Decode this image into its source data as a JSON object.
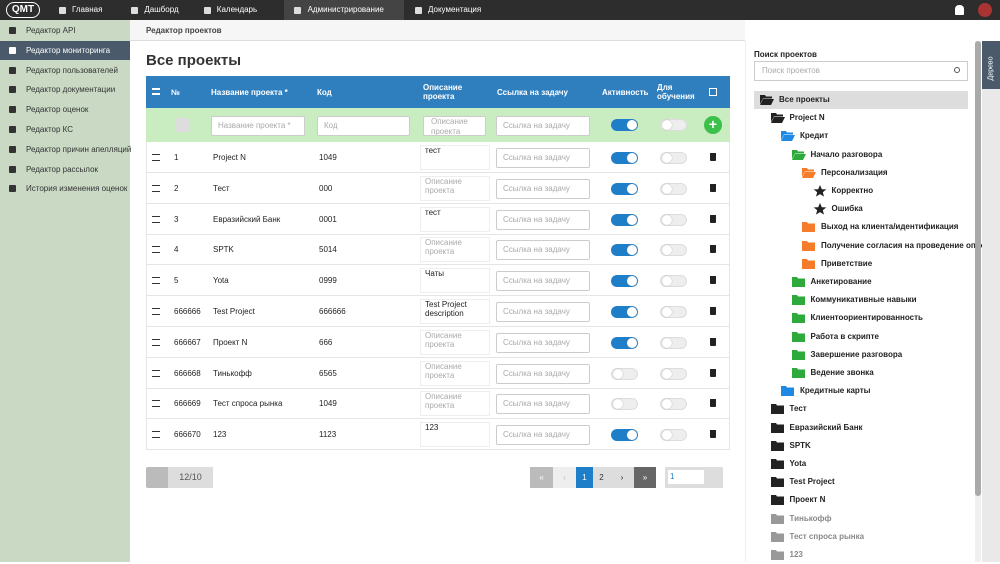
{
  "nav": {
    "logo": "QMT",
    "items": [
      "Главная",
      "Дашборд",
      "Календарь",
      "Администрирование",
      "Документация"
    ],
    "active": 3
  },
  "sidebar": {
    "items": [
      "Редактор API",
      "Редактор мониторинга",
      "Редактор пользователей",
      "Редактор документации",
      "Редактор оценок",
      "Редактор КС",
      "Редактор причин апелляций",
      "Редактор рассылок",
      "История изменения оценок"
    ],
    "active": 1
  },
  "breadcrumb": "Редактор проектов",
  "page_title": "Все проекты",
  "table": {
    "headers": {
      "num": "№",
      "name": "Название проекта *",
      "code": "Код",
      "description": "Описание проекта",
      "link": "Ссылка на задачу",
      "active": "Активность",
      "training": "Для обучения"
    },
    "filter_placeholders": {
      "name": "Название проекта *",
      "code": "Код",
      "description": "Описание проекта",
      "link": "Ссылка на задачу"
    },
    "row_placeholders": {
      "description": "Описание проекта",
      "link": "Ссылка на задачу"
    },
    "rows": [
      {
        "id": 1,
        "name": "Project N",
        "code": "1049",
        "description": "тест",
        "active": true,
        "training": false
      },
      {
        "id": 2,
        "name": "Тест",
        "code": "000",
        "description": null,
        "active": true,
        "training": false
      },
      {
        "id": 3,
        "name": "Евразийский Банк",
        "code": "0001",
        "description": "тест",
        "active": true,
        "training": false
      },
      {
        "id": 4,
        "name": "SPTK",
        "code": "5014",
        "description": null,
        "active": true,
        "training": false
      },
      {
        "id": 5,
        "name": "Yota",
        "code": "0999",
        "description": "Чаты",
        "active": true,
        "training": false
      },
      {
        "id": 666666,
        "name": "Test Project",
        "code": "666666",
        "description": "Test Project description",
        "active": true,
        "training": false
      },
      {
        "id": 666667,
        "name": "Проект N",
        "code": "666",
        "description": null,
        "active": true,
        "training": false
      },
      {
        "id": 666668,
        "name": "Тинькофф",
        "code": "6565",
        "description": null,
        "active": false,
        "training": false
      },
      {
        "id": 666669,
        "name": "Тест спроса рынка",
        "code": "1049",
        "description": null,
        "active": false,
        "training": false
      },
      {
        "id": 666670,
        "name": "123",
        "code": "1123",
        "description": "123",
        "active": true,
        "training": false
      }
    ]
  },
  "pagination": {
    "count": "12/10",
    "pages": [
      "1",
      "2"
    ],
    "current": 0,
    "page_select": "1"
  },
  "tree_panel": {
    "search_label": "Поиск проектов",
    "search_placeholder": "Поиск проектов",
    "tab": "Дерево",
    "selected": 0,
    "nodes": [
      {
        "label": "Все проекты",
        "level": 0,
        "icon": "folder-open",
        "color": "#222222"
      },
      {
        "label": "Project N",
        "level": 1,
        "icon": "folder-open",
        "color": "#222222"
      },
      {
        "label": "Кредит",
        "level": 2,
        "icon": "folder-open",
        "color": "#1e88e5"
      },
      {
        "label": "Начало разговора",
        "level": 3,
        "icon": "folder-open",
        "color": "#2eaa3c"
      },
      {
        "label": "Персонализация",
        "level": 4,
        "icon": "folder-open",
        "color": "#f57c2a"
      },
      {
        "label": "Корректно",
        "level": 5,
        "icon": "star",
        "color": "#222222"
      },
      {
        "label": "Ошибка",
        "level": 5,
        "icon": "star",
        "color": "#222222"
      },
      {
        "label": "Выход на клиента/идентификация",
        "level": 4,
        "icon": "folder",
        "color": "#f57c2a"
      },
      {
        "label": "Получение согласия на проведение опроса",
        "level": 4,
        "icon": "folder",
        "color": "#f57c2a"
      },
      {
        "label": "Приветствие",
        "level": 4,
        "icon": "folder",
        "color": "#f57c2a"
      },
      {
        "label": "Анкетирование",
        "level": 3,
        "icon": "folder",
        "color": "#2eaa3c"
      },
      {
        "label": "Коммуникативные навыки",
        "level": 3,
        "icon": "folder",
        "color": "#2eaa3c"
      },
      {
        "label": "Клиентоориентированность",
        "level": 3,
        "icon": "folder",
        "color": "#2eaa3c"
      },
      {
        "label": "Работа в скрипте",
        "level": 3,
        "icon": "folder",
        "color": "#2eaa3c"
      },
      {
        "label": "Завершение разговора",
        "level": 3,
        "icon": "folder",
        "color": "#2eaa3c"
      },
      {
        "label": "Ведение звонка",
        "level": 3,
        "icon": "folder",
        "color": "#2eaa3c"
      },
      {
        "label": "Кредитные карты",
        "level": 2,
        "icon": "folder",
        "color": "#1e88e5"
      },
      {
        "label": "Тест",
        "level": 1,
        "icon": "folder",
        "color": "#222222"
      },
      {
        "label": "Евразийский Банк",
        "level": 1,
        "icon": "folder",
        "color": "#222222"
      },
      {
        "label": "SPTK",
        "level": 1,
        "icon": "folder",
        "color": "#222222"
      },
      {
        "label": "Yota",
        "level": 1,
        "icon": "folder",
        "color": "#222222"
      },
      {
        "label": "Test Project",
        "level": 1,
        "icon": "folder",
        "color": "#222222"
      },
      {
        "label": "Проект N",
        "level": 1,
        "icon": "folder",
        "color": "#222222"
      },
      {
        "label": "Тинькофф",
        "level": 1,
        "icon": "folder",
        "color": "#999999"
      },
      {
        "label": "Тест спроса рынка",
        "level": 1,
        "icon": "folder",
        "color": "#999999"
      },
      {
        "label": "123",
        "level": 1,
        "icon": "folder",
        "color": "#999999"
      }
    ]
  }
}
